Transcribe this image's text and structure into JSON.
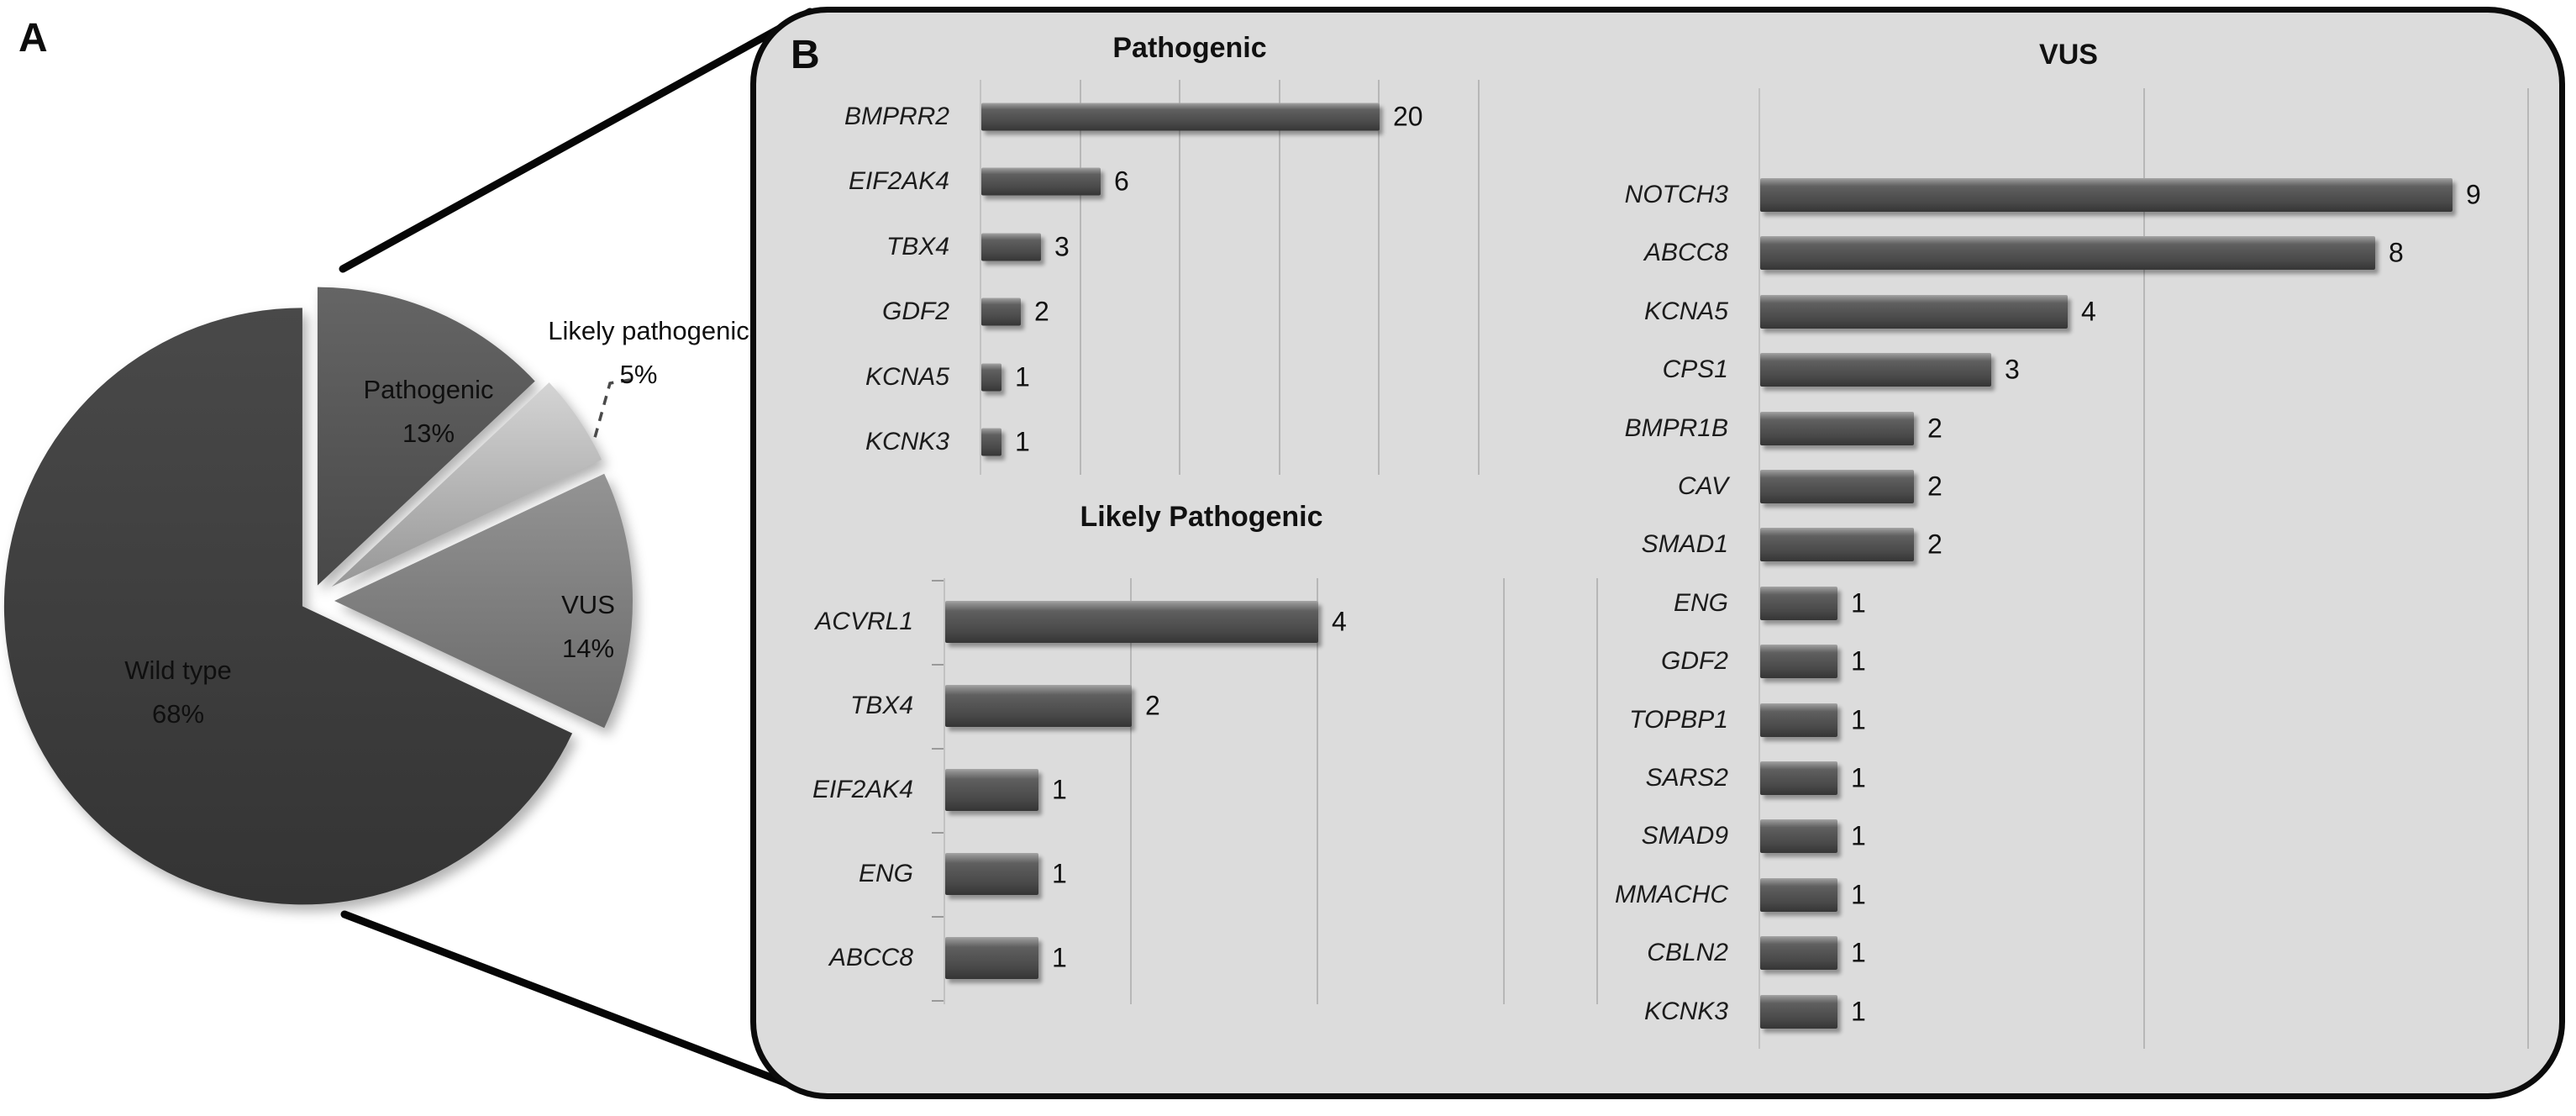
{
  "labels": {
    "panel_a": "A",
    "panel_b": "B"
  },
  "chart_data": [
    {
      "type": "pie",
      "panel": "A",
      "legend_position": "none",
      "slices": [
        {
          "label": "Pathogenic",
          "pct": 13,
          "pct_label": "13%",
          "color": "#565656"
        },
        {
          "label": "Likely pathogenic",
          "pct": 5,
          "pct_label": "5%",
          "color": "#b4b4b4"
        },
        {
          "label": "VUS",
          "pct": 14,
          "pct_label": "14%",
          "color": "#7d7d7d"
        },
        {
          "label": "Wild type",
          "pct": 68,
          "pct_label": "68%",
          "color": "#3e3e3e"
        }
      ]
    },
    {
      "type": "bar",
      "orientation": "horizontal",
      "title": "Pathogenic",
      "categories": [
        "BMPRR2",
        "EIF2AK4",
        "TBX4",
        "GDF2",
        "KCNA5",
        "KCNK3"
      ],
      "values": [
        20,
        6,
        3,
        2,
        1,
        1
      ],
      "xlim": [
        0,
        25.3
      ],
      "gridlines": [
        5,
        10,
        15,
        20,
        25
      ],
      "grid": true
    },
    {
      "type": "bar",
      "orientation": "horizontal",
      "title": "Likely Pathogenic",
      "categories": [
        "ACVRL1",
        "TBX4",
        "EIF2AK4",
        "ENG",
        "ABCC8"
      ],
      "values": [
        4,
        2,
        1,
        1,
        1
      ],
      "xlim": [
        0,
        7.1
      ],
      "gridlines": [
        2,
        4,
        6,
        7
      ],
      "grid": true
    },
    {
      "type": "bar",
      "orientation": "horizontal",
      "title": "VUS",
      "categories": [
        "NOTCH3",
        "ABCC8",
        "KCNA5",
        "CPS1",
        "BMPR1B",
        "CAV",
        "SMAD1",
        "ENG",
        "GDF2",
        "TOPBP1",
        "SARS2",
        "SMAD9",
        "MMACHC",
        "CBLN2",
        "KCNK3"
      ],
      "values": [
        9,
        8,
        4,
        3,
        2,
        2,
        2,
        1,
        1,
        1,
        1,
        1,
        1,
        1,
        1
      ],
      "xlim": [
        0,
        10.45
      ],
      "gridlines": [
        5,
        10
      ],
      "grid": true
    }
  ]
}
